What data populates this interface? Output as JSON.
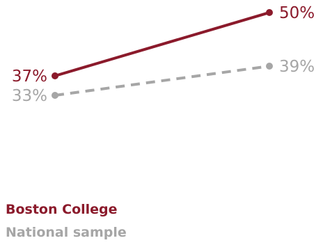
{
  "chart_data": {
    "type": "line",
    "title": "",
    "xlabel": "",
    "ylabel": "",
    "x": [
      1,
      2
    ],
    "series": [
      {
        "name": "Boston College",
        "values": [
          37,
          50
        ],
        "labels": [
          "37%",
          "50%"
        ],
        "color": "#8b1a2b",
        "style": "solid"
      },
      {
        "name": "National sample",
        "values": [
          33,
          39
        ],
        "labels": [
          "33%",
          "39%"
        ],
        "color": "#a6a6a6",
        "style": "dashed"
      }
    ],
    "axes_visible": false,
    "grid": false,
    "legend_position": "bottom-left"
  }
}
